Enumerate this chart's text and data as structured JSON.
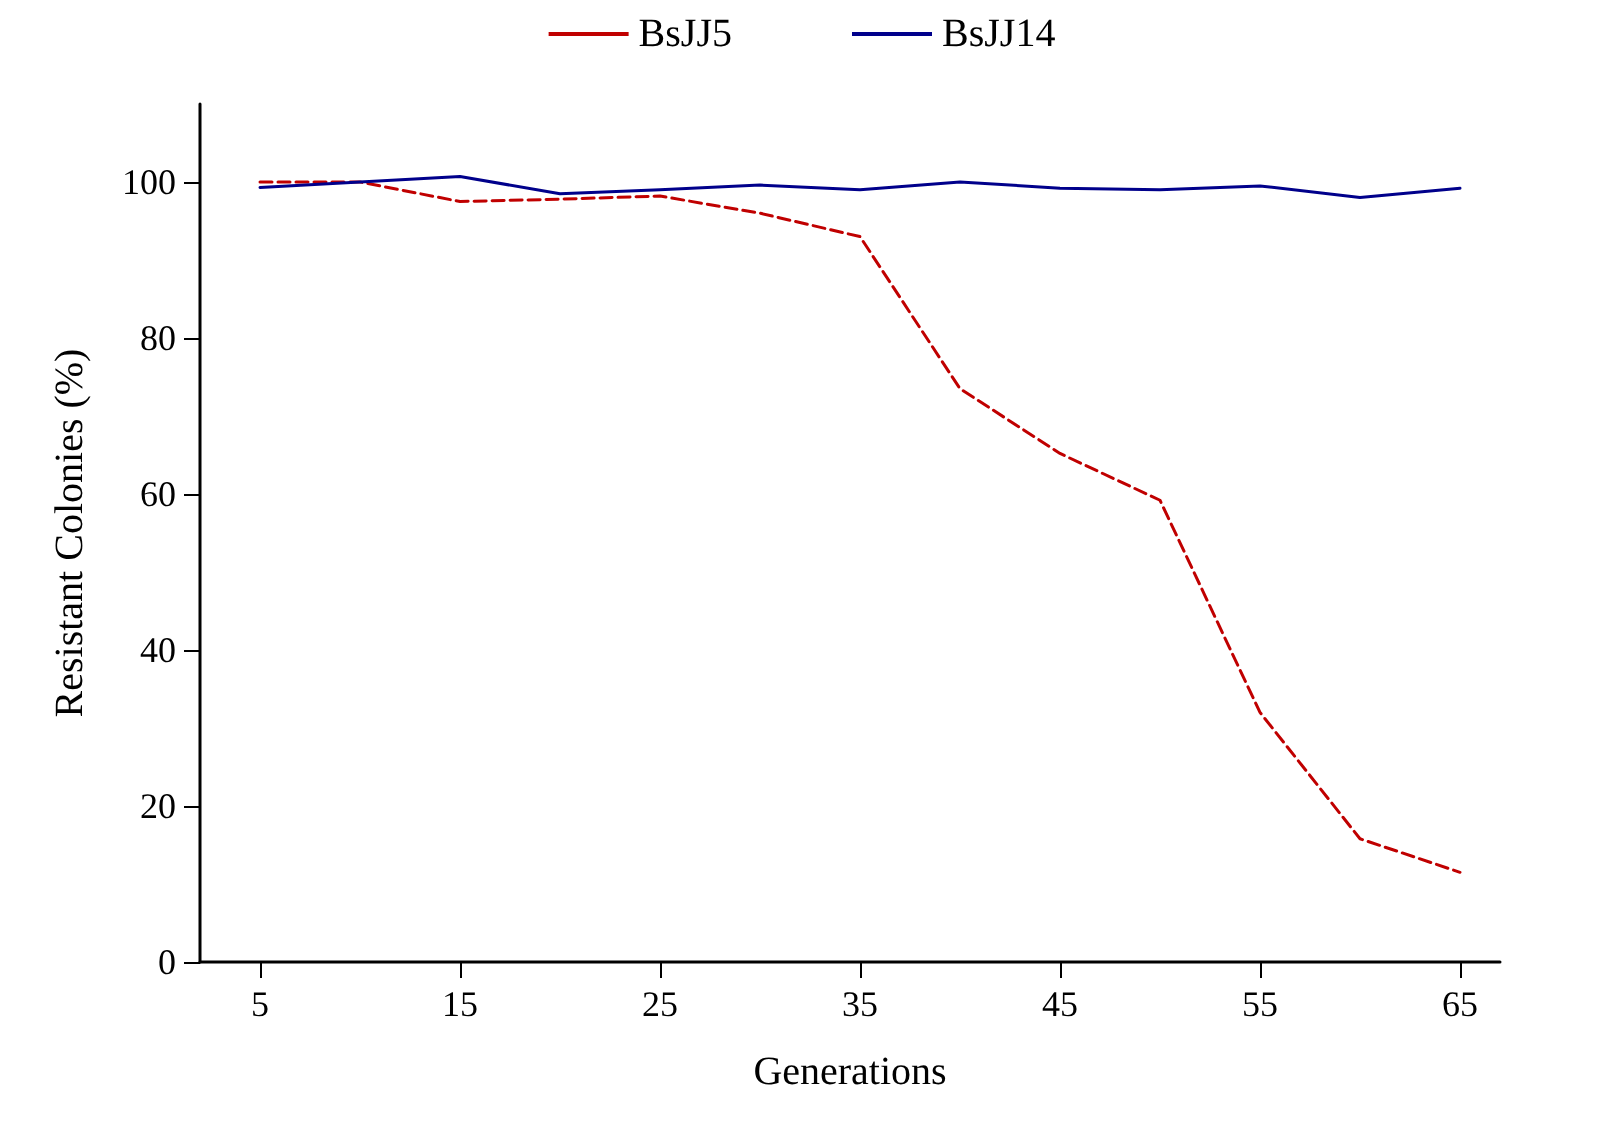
{
  "chart_data": {
    "type": "line",
    "xlabel": "Generations",
    "ylabel": "Resistant Colonies (%)",
    "x": [
      5,
      10,
      15,
      20,
      25,
      30,
      35,
      40,
      45,
      50,
      55,
      60,
      65
    ],
    "series": [
      {
        "name": "BsJJ5",
        "color": "#c00000",
        "line_style": "dashed",
        "values": [
          100,
          100,
          97.5,
          97.8,
          98.2,
          96,
          93,
          73.5,
          65.2,
          59.2,
          32,
          15.8,
          11.5
        ]
      },
      {
        "name": "BsJJ14",
        "color": "#00008b",
        "line_style": "solid",
        "values": [
          99.3,
          100,
          100.7,
          98.5,
          99,
          99.6,
          99,
          100,
          99.2,
          99,
          99.5,
          98,
          99.2
        ]
      }
    ],
    "xlim": [
      2,
      67
    ],
    "xticks": [
      5,
      15,
      25,
      35,
      45,
      55,
      65
    ],
    "ylim": [
      0,
      110
    ],
    "yticks": [
      0,
      20,
      40,
      60,
      80,
      100
    ],
    "grid": false,
    "legend": "top",
    "marker": "none"
  }
}
